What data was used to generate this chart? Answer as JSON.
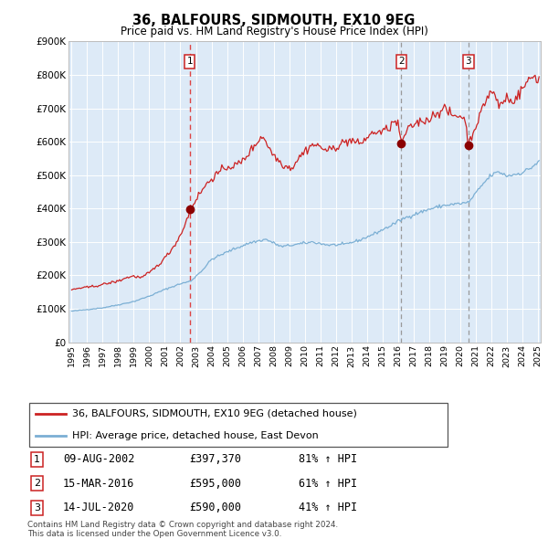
{
  "title": "36, BALFOURS, SIDMOUTH, EX10 9EG",
  "subtitle": "Price paid vs. HM Land Registry's House Price Index (HPI)",
  "legend_line1": "36, BALFOURS, SIDMOUTH, EX10 9EG (detached house)",
  "legend_line2": "HPI: Average price, detached house, East Devon",
  "footer1": "Contains HM Land Registry data © Crown copyright and database right 2024.",
  "footer2": "This data is licensed under the Open Government Licence v3.0.",
  "transactions": [
    {
      "num": 1,
      "date": "09-AUG-2002",
      "price": "£397,370",
      "pct": "81%",
      "dir": "↑"
    },
    {
      "num": 2,
      "date": "15-MAR-2016",
      "price": "£595,000",
      "pct": "61%",
      "dir": "↑"
    },
    {
      "num": 3,
      "date": "14-JUL-2020",
      "price": "£590,000",
      "pct": "41%",
      "dir": "↑"
    }
  ],
  "t_dates_dec": [
    2002.6111,
    2016.2083,
    2020.5417
  ],
  "t_prices": [
    397370,
    595000,
    590000
  ],
  "hpi_color": "#7bafd4",
  "price_color": "#cc2222",
  "dot_color": "#8b0000",
  "vline1_color": "#dd4444",
  "vline23_color": "#999999",
  "plot_bg": "#ddeaf7",
  "grid_color": "#ffffff",
  "ylim": [
    0,
    900000
  ],
  "yticks": [
    0,
    100000,
    200000,
    300000,
    400000,
    500000,
    600000,
    700000,
    800000,
    900000
  ],
  "ytick_labels": [
    "£0",
    "£100K",
    "£200K",
    "£300K",
    "£400K",
    "£500K",
    "£600K",
    "£700K",
    "£800K",
    "£900K"
  ],
  "xstart_year": 1995,
  "xend_year": 2025
}
